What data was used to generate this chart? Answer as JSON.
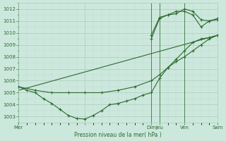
{
  "bg_color": "#cce8dd",
  "grid_color_major": "#aaccbb",
  "grid_color_minor": "#c0ddd5",
  "line_color": "#2d6a2d",
  "marker_color": "#2d6a2d",
  "vline_color": "#3a7a3a",
  "xlabel_text": "Pression niveau de la mer( hPa )",
  "ylim": [
    1002.5,
    1012.5
  ],
  "yticks": [
    1003,
    1004,
    1005,
    1006,
    1007,
    1008,
    1009,
    1010,
    1011,
    1012
  ],
  "xlim": [
    0,
    144
  ],
  "xtick_positions": [
    0,
    48,
    96,
    102,
    120,
    144
  ],
  "xtick_labels": [
    "Mer",
    "",
    "Dim",
    "Jeu",
    "Ven",
    "Sam"
  ],
  "vline_positions": [
    0,
    96,
    102,
    120,
    144
  ],
  "series1_dip": {
    "x": [
      0,
      6,
      12,
      18,
      24,
      30,
      36,
      42,
      48,
      54,
      60,
      66,
      72,
      78,
      84,
      90,
      96,
      102,
      108,
      114,
      120,
      126,
      132,
      138,
      144
    ],
    "y": [
      1005.5,
      1005.2,
      1005.0,
      1004.5,
      1004.1,
      1003.6,
      1003.1,
      1002.85,
      1002.8,
      1003.1,
      1003.5,
      1004.0,
      1004.1,
      1004.3,
      1004.5,
      1004.8,
      1005.0,
      1006.2,
      1007.1,
      1007.6,
      1008.0,
      1008.5,
      1009.0,
      1009.5,
      1009.8
    ]
  },
  "series2_smooth": {
    "x": [
      0,
      12,
      24,
      36,
      48,
      60,
      72,
      84,
      96,
      102,
      108,
      114,
      120,
      126,
      132,
      138,
      144
    ],
    "y": [
      1005.5,
      1005.2,
      1005.0,
      1005.0,
      1005.0,
      1005.0,
      1005.2,
      1005.5,
      1006.0,
      1006.5,
      1007.1,
      1007.8,
      1008.5,
      1009.2,
      1009.5,
      1009.6,
      1009.8
    ]
  },
  "series3_straight": {
    "x": [
      0,
      144
    ],
    "y": [
      1005.2,
      1009.8
    ]
  },
  "series4_upper": {
    "x": [
      96,
      102,
      108,
      114,
      120,
      126,
      132,
      138,
      144
    ],
    "y": [
      1009.5,
      1011.2,
      1011.5,
      1011.8,
      1011.8,
      1011.5,
      1010.5,
      1011.0,
      1011.2
    ]
  },
  "series5_upper2": {
    "x": [
      96,
      102,
      108,
      114,
      120,
      126,
      132,
      138,
      144
    ],
    "y": [
      1009.8,
      1011.3,
      1011.5,
      1011.6,
      1012.0,
      1011.8,
      1011.1,
      1011.0,
      1011.1
    ]
  }
}
